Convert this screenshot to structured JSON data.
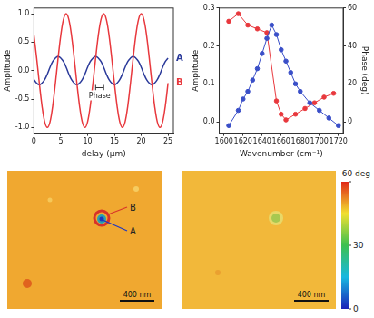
{
  "chart_data": [
    {
      "type": "line",
      "x_label": "delay (µm)",
      "y_label": "Amplitude",
      "x": [
        0,
        0.5,
        1,
        1.5,
        2,
        2.5,
        3,
        3.5,
        4,
        4.5,
        5,
        5.5,
        6,
        6.5,
        7,
        7.5,
        8,
        8.5,
        9,
        9.5,
        10,
        10.5,
        11,
        11.5,
        12,
        12.5,
        13,
        13.5,
        14,
        14.5,
        15,
        15.5,
        16,
        16.5,
        17,
        17.5,
        18,
        18.5,
        19,
        19.5,
        20,
        20.5,
        21,
        21.5,
        22,
        22.5,
        23,
        23.5,
        24,
        24.5,
        25
      ],
      "series": [
        {
          "name": "B",
          "color": "#e8383d",
          "marker": "none",
          "line_style": "solid",
          "values": [
            0.62,
            0.22,
            -0.22,
            -0.62,
            -0.9,
            -1,
            -0.9,
            -0.62,
            -0.22,
            0.22,
            0.62,
            0.9,
            1,
            0.9,
            0.62,
            0.22,
            -0.22,
            -0.62,
            -0.9,
            -1,
            -0.9,
            -0.62,
            -0.22,
            0.22,
            0.62,
            0.9,
            1,
            0.9,
            0.62,
            0.22,
            -0.22,
            -0.62,
            -0.9,
            -1,
            -0.9,
            -0.62,
            -0.22,
            0.22,
            0.62,
            0.9,
            1,
            0.9,
            0.62,
            0.22,
            -0.22,
            -0.62,
            -0.9,
            -1,
            -0.9,
            -0.62,
            -0.22
          ]
        },
        {
          "name": "A",
          "color": "#2b3a9a",
          "marker": "none",
          "line_style": "solid",
          "values": [
            -0.16,
            -0.22,
            -0.25,
            -0.22,
            -0.16,
            -0.06,
            0.06,
            0.16,
            0.22,
            0.25,
            0.22,
            0.16,
            0.06,
            -0.06,
            -0.16,
            -0.22,
            -0.25,
            -0.22,
            -0.16,
            -0.06,
            0.06,
            0.16,
            0.22,
            0.25,
            0.22,
            0.16,
            0.06,
            -0.06,
            -0.16,
            -0.22,
            -0.25,
            -0.22,
            -0.16,
            -0.06,
            0.06,
            0.16,
            0.22,
            0.25,
            0.22,
            0.16,
            0.06,
            -0.06,
            -0.16,
            -0.22,
            -0.25,
            -0.22,
            -0.16,
            -0.06,
            0.06,
            0.16,
            0.22
          ]
        }
      ],
      "xlim": [
        0,
        26
      ],
      "xticks": [
        0,
        5,
        10,
        15,
        20,
        25
      ],
      "ylim": [
        -1.1,
        1.1
      ],
      "yticks": [
        {
          "value": -1,
          "label": "-1.0"
        },
        {
          "value": -0.5,
          "label": "-0.5"
        },
        {
          "value": 0,
          "label": "0.0"
        },
        {
          "value": 0.5,
          "label": "0.5"
        },
        {
          "value": 1,
          "label": "1.0"
        }
      ],
      "grid": false,
      "annotations": [
        {
          "text": "Phase",
          "x": [
            11.5,
            13
          ],
          "y": -0.3
        }
      ]
    },
    {
      "type": "line",
      "x_label": "Wavenumber (cm⁻¹)",
      "y_label": "Amplitude",
      "y2_label": "Phase (deg)",
      "series": [
        {
          "color": "#3a4fc8",
          "marker": "circle",
          "line_style": "solid",
          "x": [
            1605,
            1615,
            1620,
            1625,
            1630,
            1635,
            1640,
            1645,
            1650,
            1655,
            1660,
            1665,
            1670,
            1675,
            1680,
            1690,
            1700,
            1710,
            1720
          ],
          "values": [
            -0.01,
            0.03,
            0.06,
            0.08,
            0.11,
            0.14,
            0.18,
            0.22,
            0.255,
            0.23,
            0.19,
            0.16,
            0.13,
            0.1,
            0.08,
            0.05,
            0.03,
            0.01,
            -0.01
          ]
        },
        {
          "color": "#e8383d",
          "marker": "circle",
          "line_style": "solid",
          "axis": "y2",
          "x": [
            1605,
            1615,
            1625,
            1635,
            1645,
            1655,
            1660,
            1665,
            1675,
            1685,
            1695,
            1705,
            1715
          ],
          "values": [
            53,
            57,
            51,
            49,
            47,
            11,
            4,
            1,
            4,
            7,
            10,
            13,
            15
          ]
        }
      ],
      "xlim": [
        1595,
        1725
      ],
      "xticks": [
        1600,
        1620,
        1640,
        1660,
        1680,
        1700,
        1720
      ],
      "ylim": [
        -0.03,
        0.3
      ],
      "yticks": [
        {
          "value": 0,
          "label": "0.0"
        },
        {
          "value": 0.1,
          "label": "0.1"
        },
        {
          "value": 0.2,
          "label": "0.2"
        },
        {
          "value": 0.3,
          "label": "0.3"
        }
      ],
      "y2lim": [
        -6,
        60
      ],
      "y2ticks": [
        0,
        20,
        40,
        60
      ],
      "grid": false
    }
  ],
  "maps": [
    {
      "labels": [
        "A",
        "B"
      ],
      "scale_bar": "400 nm"
    },
    {
      "scale_bar": "400 nm"
    }
  ],
  "color_bar": {
    "range": [
      0,
      60
    ],
    "ticks": [
      {
        "value": 60,
        "label": "60 deg"
      },
      30,
      0
    ]
  }
}
